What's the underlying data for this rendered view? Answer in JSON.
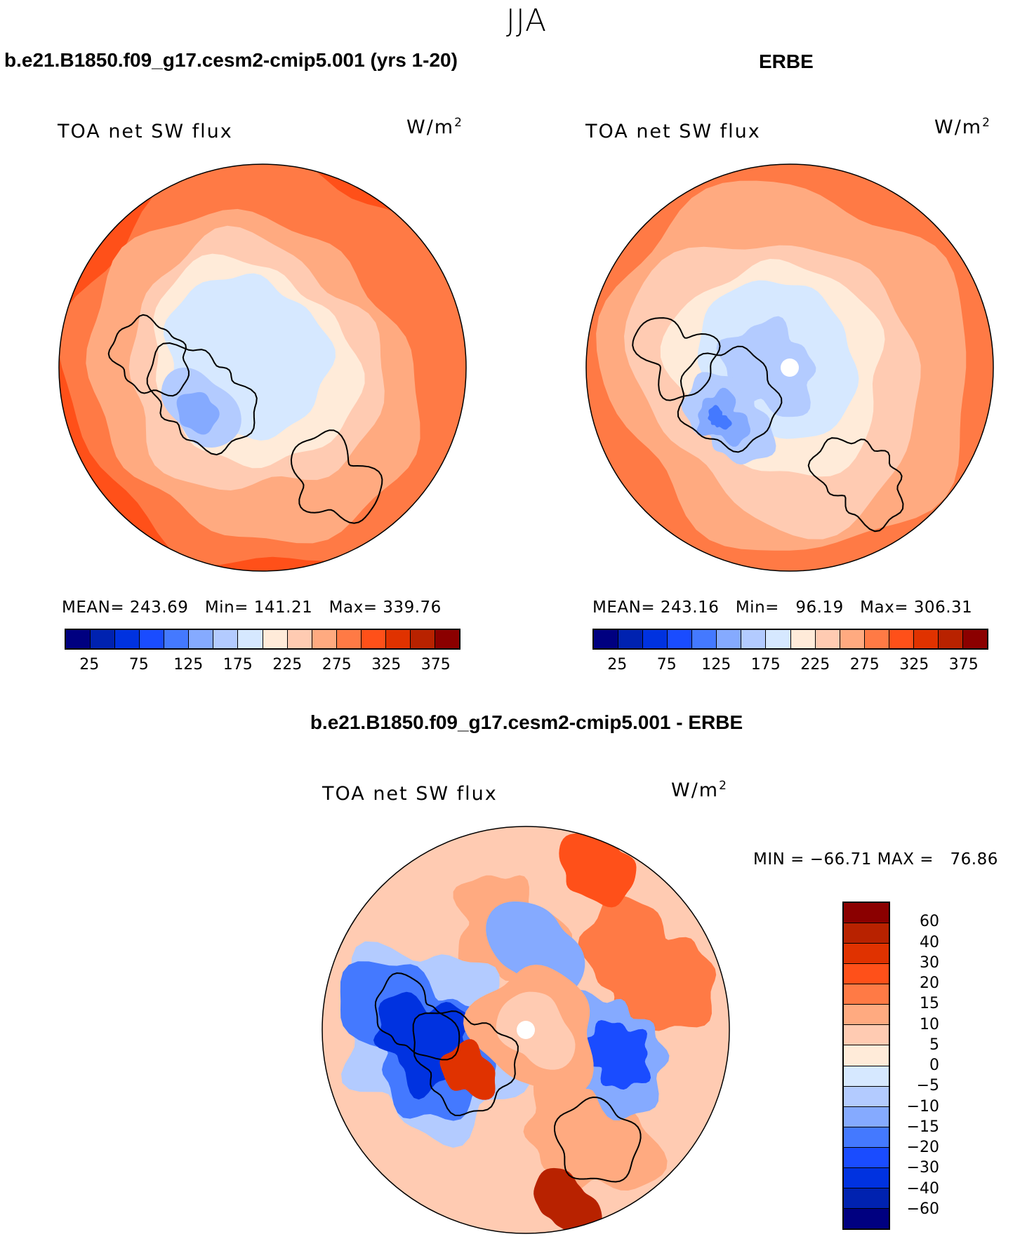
{
  "title": "JJA",
  "colors": [
    "#000080",
    "#0022b0",
    "#0032e0",
    "#1a4cff",
    "#4479ff",
    "#85aaff",
    "#b3cbff",
    "#d6e8ff",
    "#ffebd9",
    "#ffcbb2",
    "#ffaa80",
    "#ff7a45",
    "#ff5019",
    "#e03200",
    "#b82200",
    "#8b0000"
  ],
  "chart_data": [
    {
      "type": "heatmap",
      "projection": "north polar stereographic",
      "title": "b.e21.B1850.f09_g17.cesm2-cmip5.001 (yrs 1-20)",
      "label": "TOA net SW flux",
      "units": "W/m",
      "units_sup": "2",
      "stats": {
        "mean_label": "MEAN=",
        "mean": "243.69",
        "min_label": "Min=",
        "min": "141.21",
        "max_label": "Max=",
        "max": "339.76"
      },
      "colorbar_labels": [
        "25",
        "75",
        "125",
        "175",
        "225",
        "275",
        "325",
        "375"
      ],
      "colorbar_orientation": "horizontal"
    },
    {
      "type": "heatmap",
      "projection": "north polar stereographic",
      "title": "ERBE",
      "label": "TOA net SW flux",
      "units": "W/m",
      "units_sup": "2",
      "stats": {
        "mean_label": "MEAN=",
        "mean": "243.16",
        "min_label": "Min=",
        "min": "96.19",
        "max_label": "Max=",
        "max": "306.31"
      },
      "colorbar_labels": [
        "25",
        "75",
        "125",
        "175",
        "225",
        "275",
        "325",
        "375"
      ],
      "colorbar_orientation": "horizontal"
    },
    {
      "type": "heatmap",
      "projection": "north polar stereographic",
      "title": "b.e21.B1850.f09_g17.cesm2-cmip5.001 - ERBE",
      "label": "TOA net SW flux",
      "units": "W/m",
      "units_sup": "2",
      "stats_text": "MIN = −66.71 MAX =   76.86",
      "colorbar_labels": [
        "60",
        "40",
        "30",
        "20",
        "15",
        "10",
        "5",
        "0",
        "−5",
        "−10",
        "−15",
        "−20",
        "−30",
        "−40",
        "−60"
      ],
      "colorbar_orientation": "vertical"
    }
  ]
}
